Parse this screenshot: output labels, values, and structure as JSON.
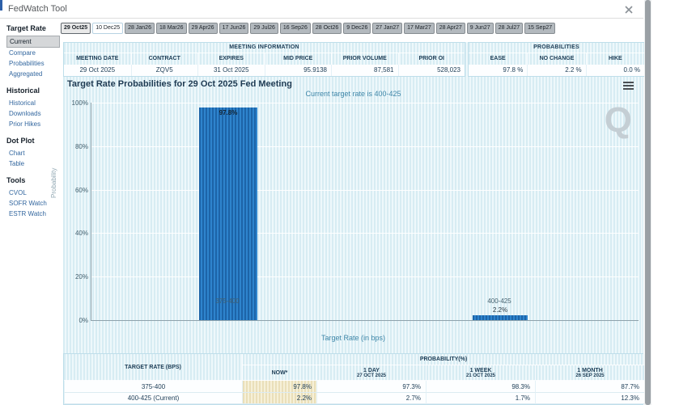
{
  "app": {
    "title": "FedWatch Tool"
  },
  "tabs": [
    "29 Oct25",
    "10 Dec25",
    "28 Jan26",
    "18 Mar26",
    "29 Apr26",
    "17 Jun26",
    "29 Jul26",
    "16 Sep26",
    "28 Oct26",
    "9 Dec26",
    "27 Jan27",
    "17 Mar27",
    "28 Apr27",
    "9 Jun27",
    "28 Jul27",
    "15 Sep27"
  ],
  "sidebar": {
    "sections": [
      {
        "title": "Target Rate",
        "items": [
          {
            "label": "Current",
            "selected": true
          },
          {
            "label": "Compare"
          },
          {
            "label": "Probabilities"
          },
          {
            "label": "Aggregated"
          }
        ]
      },
      {
        "title": "Historical",
        "items": [
          {
            "label": "Historical"
          },
          {
            "label": "Downloads"
          },
          {
            "label": "Prior Hikes"
          }
        ]
      },
      {
        "title": "Dot Plot",
        "items": [
          {
            "label": "Chart"
          },
          {
            "label": "Table"
          }
        ]
      },
      {
        "title": "Tools",
        "items": [
          {
            "label": "CVOL"
          },
          {
            "label": "SOFR Watch"
          },
          {
            "label": "ESTR Watch"
          }
        ]
      }
    ]
  },
  "meeting_info": {
    "title": "MEETING INFORMATION",
    "columns": [
      "MEETING DATE",
      "CONTRACT",
      "EXPIRES",
      "MID PRICE",
      "PRIOR VOLUME",
      "PRIOR OI"
    ],
    "values": [
      "29 Oct 2025",
      "ZQV5",
      "31 Oct 2025",
      "95.9138",
      "87,581",
      "528,023"
    ]
  },
  "probabilities_summary": {
    "title": "PROBABILITIES",
    "columns": [
      "EASE",
      "NO CHANGE",
      "HIKE"
    ],
    "values": [
      "97.8 %",
      "2.2 %",
      "0.0 %"
    ]
  },
  "chart_data": {
    "type": "bar",
    "title": "Target Rate Probabilities for 29 Oct 2025 Fed Meeting",
    "subtitle": "Current target rate is 400-425",
    "categories": [
      "375-400",
      "400-425"
    ],
    "values": [
      97.8,
      2.2
    ],
    "bar_labels": [
      "97.8%",
      "2.2%"
    ],
    "xlabel": "Target Rate (in bps)",
    "ylabel": "Probability",
    "ylim": [
      0,
      100
    ],
    "yticks": [
      "100%",
      "80%",
      "60%",
      "40%",
      "20%",
      "0%"
    ],
    "grid": true,
    "bar_color": "#2878be",
    "background_color": "#def0f6",
    "watermark": "Q"
  },
  "prob_table": {
    "row_header": "TARGET RATE (BPS)",
    "group_header": "PROBABILITY(%)",
    "columns": [
      {
        "label": "NOW*",
        "date": ""
      },
      {
        "label": "1 DAY",
        "date": "27 OCT 2025"
      },
      {
        "label": "1 WEEK",
        "date": "21 OCT 2025"
      },
      {
        "label": "1 MONTH",
        "date": "26 SEP 2025"
      }
    ],
    "rows": [
      {
        "range": "375-400",
        "now": "97.8%",
        "day": "97.3%",
        "week": "98.3%",
        "month": "87.7%"
      },
      {
        "range": "400-425 (Current)",
        "now": "2.2%",
        "day": "2.7%",
        "week": "1.7%",
        "month": "12.3%"
      }
    ]
  }
}
